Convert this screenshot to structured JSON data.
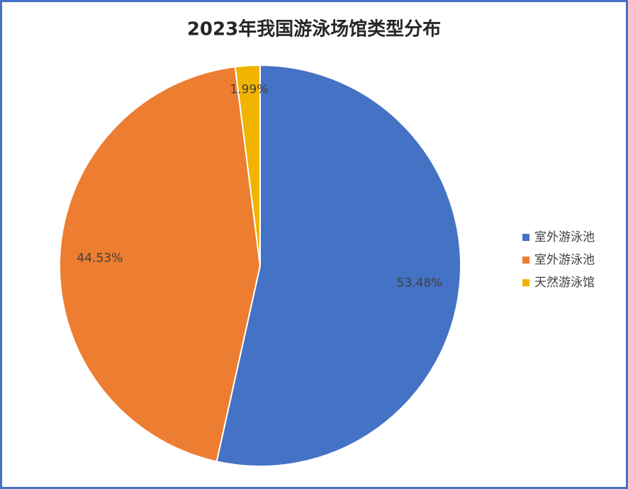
{
  "chart_data": {
    "type": "pie",
    "title": "2023年我国游泳场馆类型分布",
    "categories": [
      "室外游泳池",
      "室外游泳池",
      "天然游泳馆"
    ],
    "values": [
      53.48,
      44.53,
      1.99
    ],
    "value_labels": [
      "53.48%",
      "44.53%",
      "1.99%"
    ],
    "colors": [
      "#4472c4",
      "#ed7d31",
      "#f0b400"
    ],
    "legend": "right"
  }
}
